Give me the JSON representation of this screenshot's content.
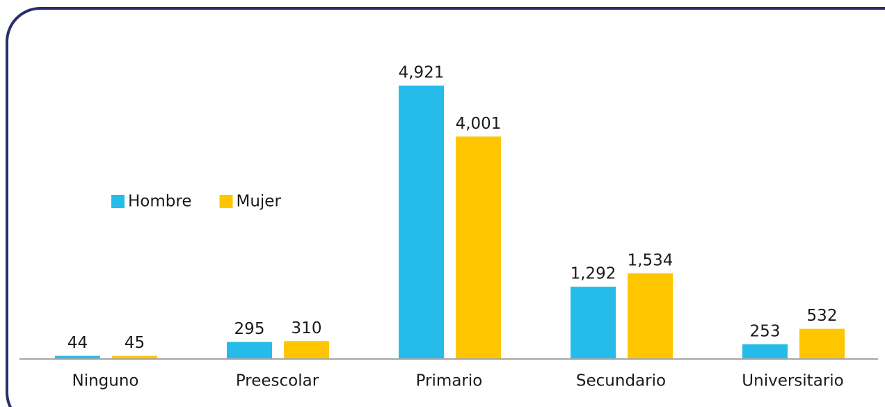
{
  "chart_data": {
    "type": "bar",
    "categories": [
      "Ninguno",
      "Preescolar",
      "Primario",
      "Secundario",
      "Universitario"
    ],
    "series": [
      {
        "name": "Hombre",
        "color": "#25bcea",
        "values": [
          44,
          295,
          4921,
          1292,
          253
        ],
        "value_labels": [
          "44",
          "295",
          "4,921",
          "1,292",
          "253"
        ]
      },
      {
        "name": "Mujer",
        "color": "#ffc600",
        "values": [
          45,
          310,
          4001,
          1534,
          532
        ],
        "value_labels": [
          "45",
          "310",
          "4,001",
          "1,534",
          "532"
        ]
      }
    ],
    "legend": "left"
  }
}
